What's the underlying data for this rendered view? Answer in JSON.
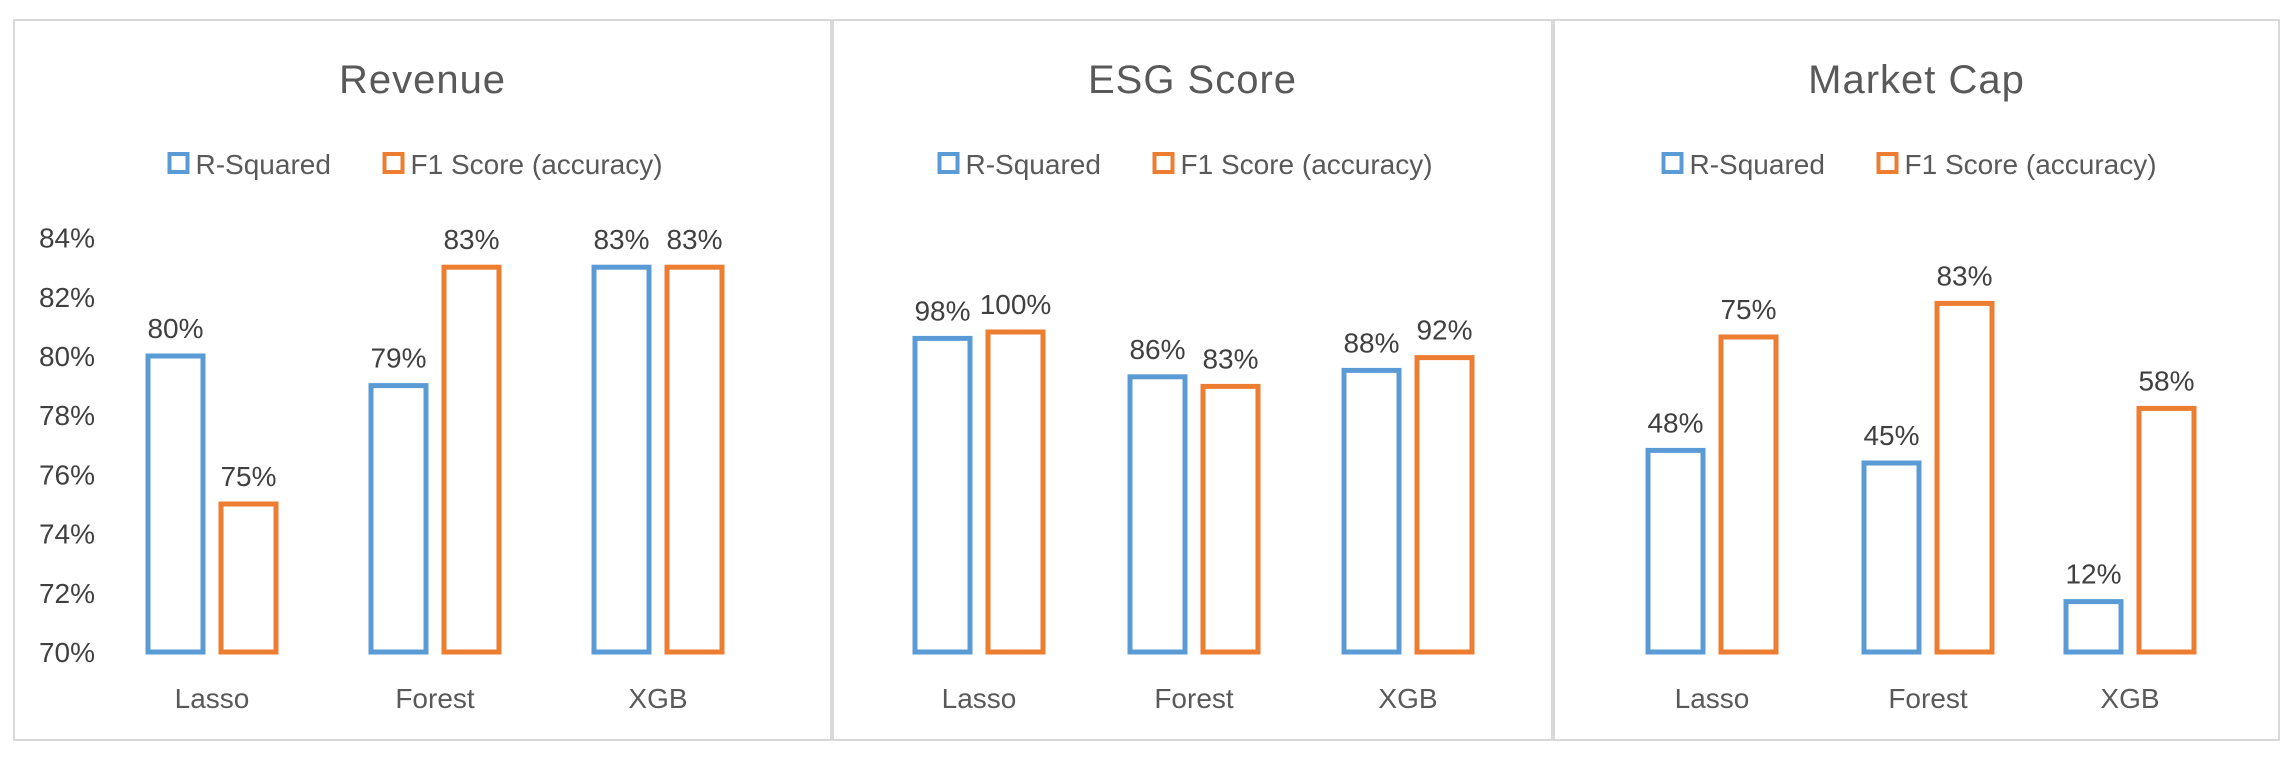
{
  "colors": {
    "r_squared": "#5B9BD5",
    "f1": "#ED7D31",
    "panel_border": "#D9D9D9"
  },
  "chart_data": [
    {
      "type": "bar",
      "title": "Revenue",
      "categories": [
        "Lasso",
        "Forest",
        "XGB"
      ],
      "series": [
        {
          "name": "R-Squared",
          "values": [
            80,
            79,
            83
          ],
          "labels": [
            "80%",
            "79%",
            "83%"
          ]
        },
        {
          "name": "F1 Score (accuracy)",
          "values": [
            75,
            83,
            83
          ],
          "labels": [
            "75%",
            "83%",
            "83%"
          ]
        }
      ],
      "y_ticks": [
        "84%",
        "82%",
        "80%",
        "78%",
        "76%",
        "74%",
        "72%",
        "70%"
      ],
      "ylim": [
        70,
        84
      ],
      "legend_position": "top-center",
      "grid": false
    },
    {
      "type": "bar",
      "title": "ESG Score",
      "categories": [
        "Lasso",
        "Forest",
        "XGB"
      ],
      "series": [
        {
          "name": "R-Squared",
          "values": [
            98,
            86,
            88
          ],
          "labels": [
            "98%",
            "86%",
            "88%"
          ]
        },
        {
          "name": "F1 Score (accuracy)",
          "values": [
            100,
            83,
            92
          ],
          "labels": [
            "100%",
            "83%",
            "92%"
          ]
        }
      ],
      "legend_position": "top-center",
      "grid": false
    },
    {
      "type": "bar",
      "title": "Market Cap",
      "categories": [
        "Lasso",
        "Forest",
        "XGB"
      ],
      "series": [
        {
          "name": "R-Squared",
          "values": [
            48,
            45,
            12
          ],
          "labels": [
            "48%",
            "45%",
            "12%"
          ]
        },
        {
          "name": "F1 Score (accuracy)",
          "values": [
            75,
            83,
            58
          ],
          "labels": [
            "75%",
            "83%",
            "58%"
          ]
        }
      ],
      "legend_position": "top-center",
      "grid": false
    }
  ]
}
